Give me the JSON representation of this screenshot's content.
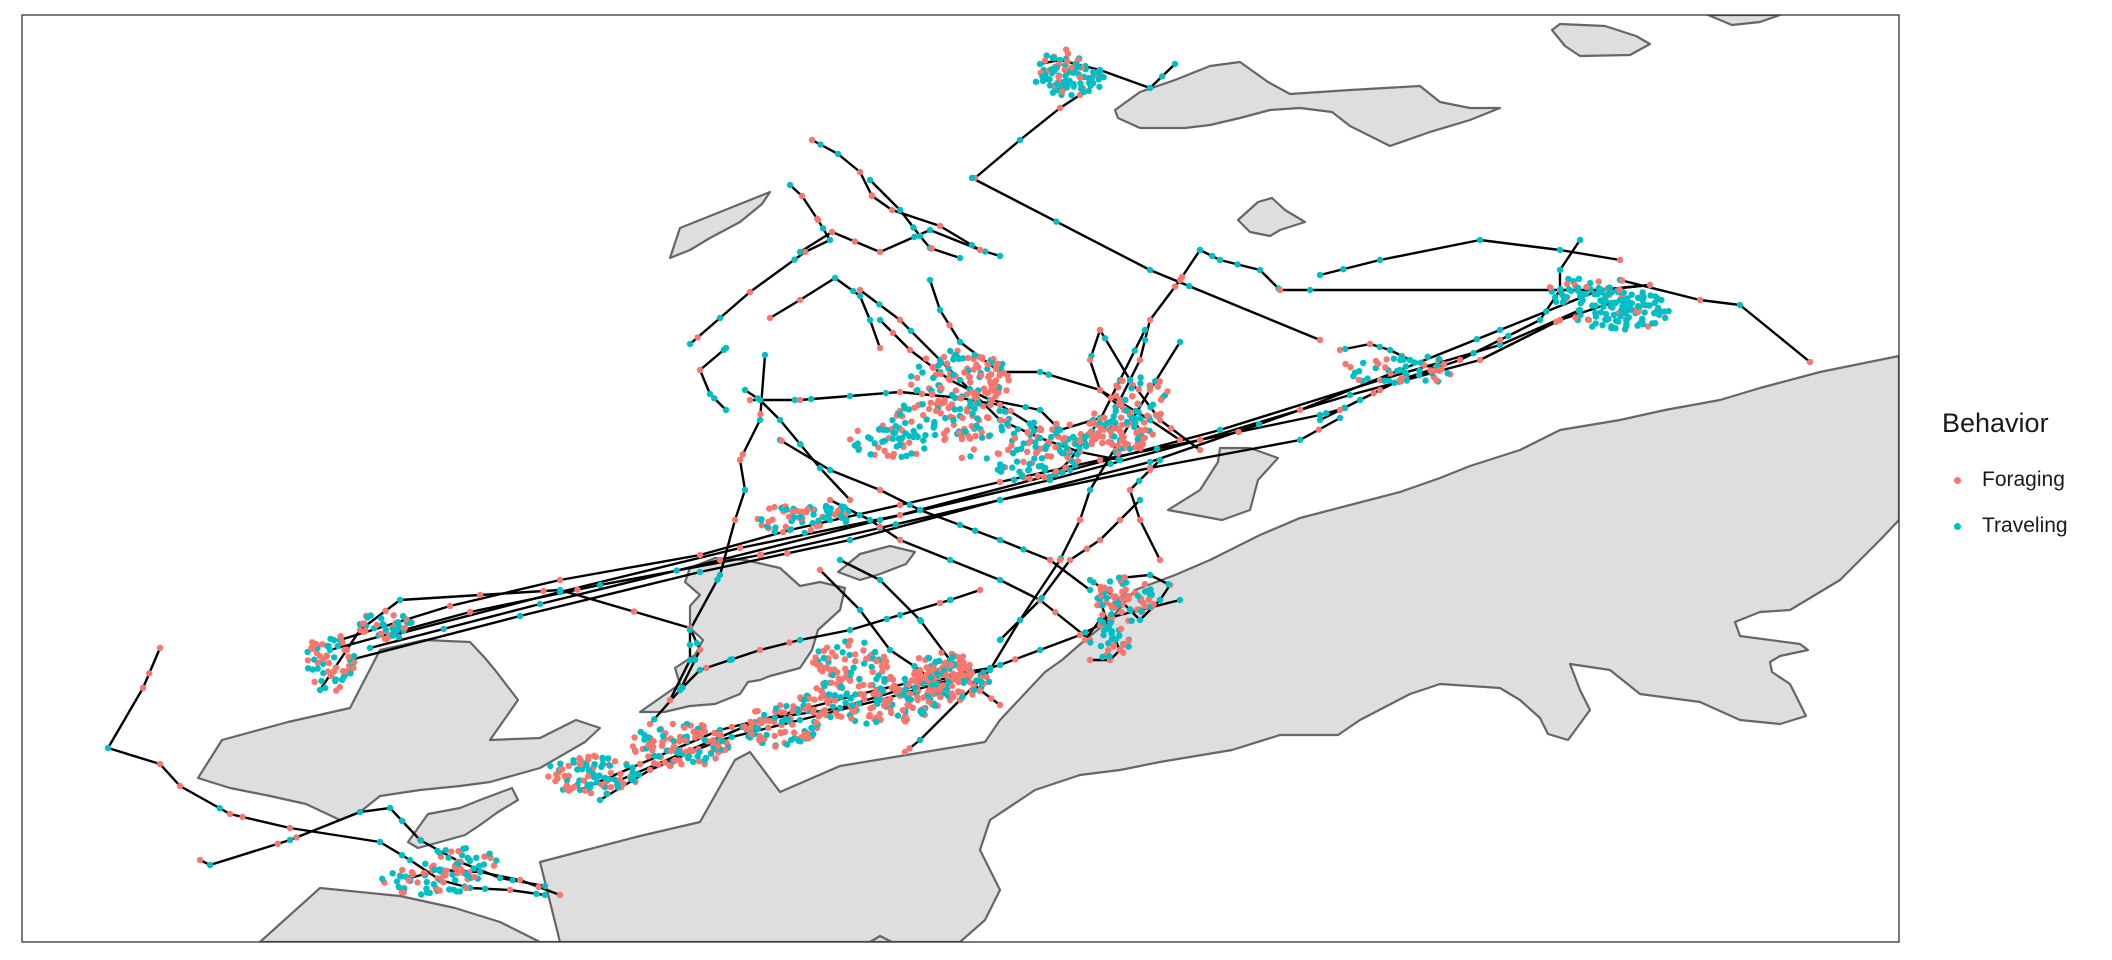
{
  "legend": {
    "title": "Behavior",
    "items": [
      {
        "label": "Foraging",
        "color": "#F8766D"
      },
      {
        "label": "Traveling",
        "color": "#00BFC4"
      }
    ]
  },
  "colors": {
    "land_fill": "#DEDEDE",
    "land_stroke": "#666666",
    "track_line": "#000000",
    "panel_border": "#333333"
  }
}
